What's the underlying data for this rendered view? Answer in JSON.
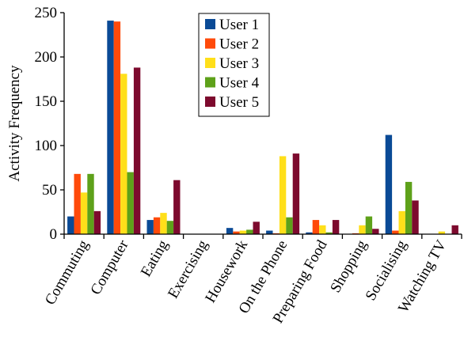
{
  "chart_data": {
    "type": "bar",
    "title": "",
    "xlabel": "",
    "ylabel": "Activity Frequency",
    "ylim": [
      0,
      250
    ],
    "yticks": [
      0,
      50,
      100,
      150,
      200,
      250
    ],
    "grid": false,
    "legend_position": "top-center",
    "categories": [
      "Commuting",
      "Computer",
      "Eating",
      "Exercising",
      "Housework",
      "On the Phone",
      "Preparing Food",
      "Shopping",
      "Socialising",
      "Watching TV"
    ],
    "series": [
      {
        "name": "User 1",
        "color": "#0a4a96",
        "values": [
          20,
          241,
          16,
          0,
          7,
          4,
          2,
          0,
          112,
          0
        ]
      },
      {
        "name": "User 2",
        "color": "#ff4a0a",
        "values": [
          68,
          240,
          19,
          0,
          3,
          1,
          16,
          1,
          4,
          0
        ]
      },
      {
        "name": "User 3",
        "color": "#ffdf1a",
        "values": [
          47,
          181,
          24,
          0,
          4,
          88,
          10,
          10,
          26,
          3
        ]
      },
      {
        "name": "User 4",
        "color": "#5ea11a",
        "values": [
          68,
          70,
          15,
          0,
          5,
          19,
          2,
          20,
          59,
          0
        ]
      },
      {
        "name": "User 5",
        "color": "#7d0a2e",
        "values": [
          26,
          188,
          61,
          0,
          14,
          91,
          16,
          6,
          38,
          10
        ]
      }
    ]
  }
}
